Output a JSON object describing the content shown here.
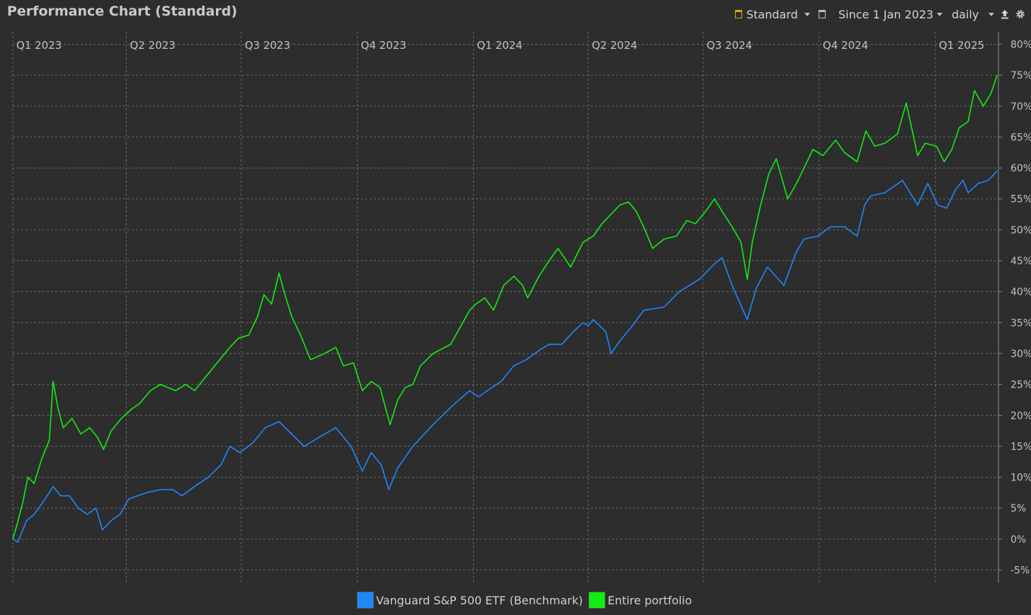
{
  "title": "Performance Chart (Standard)",
  "toolbar": {
    "view_label": "Standard",
    "period_label": "Since 1 Jan 2023",
    "interval_label": "daily",
    "icons": [
      "view-icon",
      "dropdown-icon",
      "calendar-icon",
      "dropdown-icon",
      "dropdown-icon",
      "export-icon",
      "gear-icon"
    ],
    "view_icon_color": "#e8a020"
  },
  "legend": [
    {
      "label": "Vanguard S&P 500 ETF (Benchmark)",
      "color": "#1e88ff"
    },
    {
      "label": "Entire portfolio",
      "color": "#11ee11"
    }
  ],
  "chart_data": {
    "type": "line",
    "title": "Performance Chart (Standard)",
    "xlim": [
      "2023-01-01",
      "2025-02-20"
    ],
    "ylim": [
      -7,
      82
    ],
    "y_ticks": [
      -5,
      0,
      5,
      10,
      15,
      20,
      25,
      30,
      35,
      40,
      45,
      50,
      55,
      60,
      65,
      70,
      75,
      80
    ],
    "y_tick_labels": [
      "-5%",
      "0%",
      "5%",
      "10%",
      "15%",
      "20%",
      "25%",
      "30%",
      "35%",
      "40%",
      "45%",
      "50%",
      "55%",
      "60%",
      "65%",
      "70%",
      "75%",
      "80%"
    ],
    "x_ticks": [
      {
        "date": "2023-01-01",
        "label": "Q1 2023"
      },
      {
        "date": "2023-04-01",
        "label": "Q2 2023"
      },
      {
        "date": "2023-07-01",
        "label": "Q3 2023"
      },
      {
        "date": "2023-10-01",
        "label": "Q4 2023"
      },
      {
        "date": "2024-01-01",
        "label": "Q1 2024"
      },
      {
        "date": "2024-04-01",
        "label": "Q2 2024"
      },
      {
        "date": "2024-07-01",
        "label": "Q3 2024"
      },
      {
        "date": "2024-10-01",
        "label": "Q4 2024"
      },
      {
        "date": "2025-01-01",
        "label": "Q1 2025"
      }
    ],
    "grid": true,
    "legend_position": "bottom",
    "series": [
      {
        "name": "Vanguard S&P 500 ETF (Benchmark)",
        "color": "#1e88ff",
        "points": [
          [
            "2023-01-01",
            0
          ],
          [
            "2023-01-05",
            -0.5
          ],
          [
            "2023-01-12",
            3
          ],
          [
            "2023-01-18",
            4
          ],
          [
            "2023-01-25",
            6
          ],
          [
            "2023-02-02",
            8.5
          ],
          [
            "2023-02-08",
            7
          ],
          [
            "2023-02-15",
            7
          ],
          [
            "2023-02-22",
            5
          ],
          [
            "2023-03-01",
            4
          ],
          [
            "2023-03-08",
            5
          ],
          [
            "2023-03-13",
            1.5
          ],
          [
            "2023-03-20",
            3
          ],
          [
            "2023-03-27",
            4
          ],
          [
            "2023-04-03",
            6.5
          ],
          [
            "2023-04-17",
            7.5
          ],
          [
            "2023-04-28",
            8
          ],
          [
            "2023-05-08",
            8
          ],
          [
            "2023-05-15",
            7
          ],
          [
            "2023-05-25",
            8.5
          ],
          [
            "2023-06-05",
            10
          ],
          [
            "2023-06-15",
            12
          ],
          [
            "2023-06-22",
            15
          ],
          [
            "2023-06-30",
            14
          ],
          [
            "2023-07-10",
            15.5
          ],
          [
            "2023-07-20",
            18
          ],
          [
            "2023-07-31",
            19
          ],
          [
            "2023-08-10",
            17
          ],
          [
            "2023-08-20",
            15
          ],
          [
            "2023-09-01",
            16.5
          ],
          [
            "2023-09-14",
            18
          ],
          [
            "2023-09-26",
            15
          ],
          [
            "2023-10-05",
            11
          ],
          [
            "2023-10-12",
            14
          ],
          [
            "2023-10-20",
            12
          ],
          [
            "2023-10-26",
            8
          ],
          [
            "2023-11-02",
            11.5
          ],
          [
            "2023-11-14",
            15
          ],
          [
            "2023-11-30",
            18.5
          ],
          [
            "2023-12-15",
            21.5
          ],
          [
            "2023-12-29",
            24
          ],
          [
            "2024-01-05",
            23
          ],
          [
            "2024-01-12",
            24
          ],
          [
            "2024-01-23",
            25.5
          ],
          [
            "2024-02-02",
            28
          ],
          [
            "2024-02-12",
            29
          ],
          [
            "2024-02-22",
            30.5
          ],
          [
            "2024-03-01",
            31.5
          ],
          [
            "2024-03-11",
            31.5
          ],
          [
            "2024-03-20",
            33.5
          ],
          [
            "2024-03-28",
            35
          ],
          [
            "2024-04-01",
            34.5
          ],
          [
            "2024-04-05",
            35.5
          ],
          [
            "2024-04-15",
            33.5
          ],
          [
            "2024-04-19",
            30
          ],
          [
            "2024-04-26",
            32
          ],
          [
            "2024-05-06",
            34.5
          ],
          [
            "2024-05-15",
            37
          ],
          [
            "2024-05-31",
            37.5
          ],
          [
            "2024-06-12",
            40
          ],
          [
            "2024-06-28",
            42
          ],
          [
            "2024-07-10",
            44.5
          ],
          [
            "2024-07-16",
            45.5
          ],
          [
            "2024-07-24",
            41
          ],
          [
            "2024-08-05",
            35.5
          ],
          [
            "2024-08-12",
            40.5
          ],
          [
            "2024-08-21",
            44
          ],
          [
            "2024-09-03",
            41
          ],
          [
            "2024-09-13",
            46.5
          ],
          [
            "2024-09-19",
            48.5
          ],
          [
            "2024-09-30",
            49
          ],
          [
            "2024-10-10",
            50.5
          ],
          [
            "2024-10-21",
            50.5
          ],
          [
            "2024-10-31",
            49
          ],
          [
            "2024-11-06",
            54
          ],
          [
            "2024-11-11",
            55.5
          ],
          [
            "2024-11-22",
            56
          ],
          [
            "2024-12-06",
            58
          ],
          [
            "2024-12-18",
            54
          ],
          [
            "2024-12-26",
            57.5
          ],
          [
            "2025-01-03",
            54
          ],
          [
            "2025-01-10",
            53.5
          ],
          [
            "2025-01-17",
            56.5
          ],
          [
            "2025-01-23",
            58
          ],
          [
            "2025-01-27",
            56
          ],
          [
            "2025-02-04",
            57.5
          ],
          [
            "2025-02-12",
            58
          ],
          [
            "2025-02-19",
            59.5
          ]
        ]
      },
      {
        "name": "Entire portfolio",
        "color": "#11ee11",
        "points": [
          [
            "2023-01-01",
            0
          ],
          [
            "2023-01-04",
            2
          ],
          [
            "2023-01-09",
            6
          ],
          [
            "2023-01-13",
            10
          ],
          [
            "2023-01-18",
            9
          ],
          [
            "2023-01-24",
            13
          ],
          [
            "2023-01-30",
            16
          ],
          [
            "2023-02-02",
            25.5
          ],
          [
            "2023-02-06",
            21
          ],
          [
            "2023-02-10",
            18
          ],
          [
            "2023-02-17",
            19.5
          ],
          [
            "2023-02-24",
            17
          ],
          [
            "2023-03-03",
            18
          ],
          [
            "2023-03-09",
            16.5
          ],
          [
            "2023-03-14",
            14.5
          ],
          [
            "2023-03-20",
            17.5
          ],
          [
            "2023-03-28",
            19.5
          ],
          [
            "2023-04-05",
            21
          ],
          [
            "2023-04-12",
            22
          ],
          [
            "2023-04-20",
            24
          ],
          [
            "2023-04-28",
            25
          ],
          [
            "2023-05-10",
            24
          ],
          [
            "2023-05-18",
            25
          ],
          [
            "2023-05-25",
            24
          ],
          [
            "2023-06-02",
            26
          ],
          [
            "2023-06-12",
            28.5
          ],
          [
            "2023-06-22",
            31
          ],
          [
            "2023-06-29",
            32.5
          ],
          [
            "2023-07-07",
            33
          ],
          [
            "2023-07-14",
            36
          ],
          [
            "2023-07-19",
            39.5
          ],
          [
            "2023-07-25",
            38
          ],
          [
            "2023-07-31",
            43
          ],
          [
            "2023-08-04",
            40
          ],
          [
            "2023-08-10",
            36
          ],
          [
            "2023-08-17",
            33
          ],
          [
            "2023-08-25",
            29
          ],
          [
            "2023-09-05",
            30
          ],
          [
            "2023-09-14",
            31
          ],
          [
            "2023-09-20",
            28
          ],
          [
            "2023-09-28",
            28.5
          ],
          [
            "2023-10-05",
            24
          ],
          [
            "2023-10-12",
            25.5
          ],
          [
            "2023-10-19",
            24.5
          ],
          [
            "2023-10-27",
            18.5
          ],
          [
            "2023-11-02",
            22.5
          ],
          [
            "2023-11-08",
            24.5
          ],
          [
            "2023-11-14",
            25
          ],
          [
            "2023-11-20",
            28
          ],
          [
            "2023-11-30",
            30
          ],
          [
            "2023-12-14",
            31.5
          ],
          [
            "2023-12-29",
            37
          ],
          [
            "2024-01-03",
            38
          ],
          [
            "2024-01-10",
            39
          ],
          [
            "2024-01-17",
            37
          ],
          [
            "2024-01-25",
            41
          ],
          [
            "2024-02-02",
            42.5
          ],
          [
            "2024-02-09",
            41
          ],
          [
            "2024-02-13",
            39
          ],
          [
            "2024-02-22",
            42.5
          ],
          [
            "2024-03-01",
            45
          ],
          [
            "2024-03-08",
            47
          ],
          [
            "2024-03-18",
            44
          ],
          [
            "2024-03-28",
            48
          ],
          [
            "2024-04-05",
            49
          ],
          [
            "2024-04-12",
            51
          ],
          [
            "2024-04-19",
            52.5
          ],
          [
            "2024-04-26",
            54
          ],
          [
            "2024-05-03",
            54.5
          ],
          [
            "2024-05-09",
            53
          ],
          [
            "2024-05-16",
            50
          ],
          [
            "2024-05-22",
            47
          ],
          [
            "2024-05-31",
            48.5
          ],
          [
            "2024-06-10",
            49
          ],
          [
            "2024-06-18",
            51.5
          ],
          [
            "2024-06-25",
            51
          ],
          [
            "2024-07-03",
            53
          ],
          [
            "2024-07-10",
            55
          ],
          [
            "2024-07-16",
            53
          ],
          [
            "2024-07-24",
            50.5
          ],
          [
            "2024-07-31",
            48
          ],
          [
            "2024-08-05",
            42
          ],
          [
            "2024-08-09",
            48
          ],
          [
            "2024-08-15",
            53.5
          ],
          [
            "2024-08-22",
            59
          ],
          [
            "2024-08-28",
            61.5
          ],
          [
            "2024-09-06",
            55
          ],
          [
            "2024-09-13",
            57.5
          ],
          [
            "2024-09-19",
            60
          ],
          [
            "2024-09-26",
            63
          ],
          [
            "2024-10-04",
            62
          ],
          [
            "2024-10-14",
            64.5
          ],
          [
            "2024-10-21",
            62.5
          ],
          [
            "2024-10-31",
            61
          ],
          [
            "2024-11-07",
            66
          ],
          [
            "2024-11-14",
            63.5
          ],
          [
            "2024-11-22",
            64
          ],
          [
            "2024-12-02",
            65.5
          ],
          [
            "2024-12-09",
            70.5
          ],
          [
            "2024-12-18",
            62
          ],
          [
            "2024-12-24",
            64
          ],
          [
            "2025-01-02",
            63.5
          ],
          [
            "2025-01-08",
            61
          ],
          [
            "2025-01-14",
            63
          ],
          [
            "2025-01-20",
            66.5
          ],
          [
            "2025-01-27",
            67.5
          ],
          [
            "2025-02-01",
            72.5
          ],
          [
            "2025-02-08",
            70
          ],
          [
            "2025-02-14",
            72
          ],
          [
            "2025-02-19",
            75
          ]
        ]
      }
    ]
  }
}
